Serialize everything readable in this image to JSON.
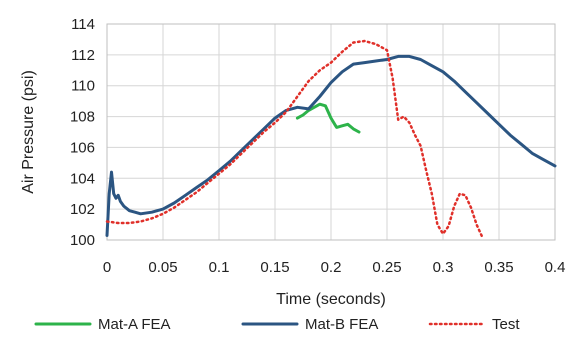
{
  "chart_data": {
    "type": "line",
    "title": "",
    "xlabel": "Time (seconds)",
    "ylabel": "Air Pressure (psi)",
    "xlim": [
      0,
      0.4
    ],
    "ylim": [
      100,
      114
    ],
    "xticks": [
      0,
      0.05,
      0.1,
      0.15,
      0.2,
      0.25,
      0.3,
      0.35,
      0.4
    ],
    "xtick_labels": [
      "0",
      "0.05",
      "0.1",
      "0.15",
      "0.2",
      "0.25",
      "0.3",
      "0.35",
      "0.4"
    ],
    "yticks": [
      100,
      102,
      104,
      106,
      108,
      110,
      112,
      114
    ],
    "ytick_labels": [
      "100",
      "102",
      "104",
      "106",
      "108",
      "110",
      "112",
      "114"
    ],
    "grid": true,
    "legend_position": "bottom",
    "series": [
      {
        "name": "Mat-A FEA",
        "color": "#2db34a",
        "style": "solid",
        "x": [
          0.17,
          0.175,
          0.18,
          0.185,
          0.19,
          0.195,
          0.2,
          0.205,
          0.21,
          0.215,
          0.22,
          0.225
        ],
        "y": [
          107.9,
          108.1,
          108.4,
          108.6,
          108.8,
          108.7,
          107.9,
          107.3,
          107.4,
          107.5,
          107.2,
          107.0
        ]
      },
      {
        "name": "Mat-B FEA",
        "color": "#2b5582",
        "style": "solid",
        "x": [
          0,
          0.002,
          0.004,
          0.006,
          0.008,
          0.01,
          0.012,
          0.015,
          0.02,
          0.025,
          0.03,
          0.04,
          0.05,
          0.06,
          0.07,
          0.08,
          0.09,
          0.1,
          0.11,
          0.12,
          0.13,
          0.14,
          0.15,
          0.16,
          0.17,
          0.18,
          0.19,
          0.2,
          0.21,
          0.22,
          0.23,
          0.24,
          0.25,
          0.26,
          0.27,
          0.28,
          0.29,
          0.3,
          0.31,
          0.32,
          0.33,
          0.34,
          0.35,
          0.36,
          0.37,
          0.38,
          0.39,
          0.4
        ],
        "y": [
          100.3,
          103.0,
          104.4,
          103.0,
          102.7,
          102.9,
          102.5,
          102.2,
          101.9,
          101.8,
          101.7,
          101.8,
          102.0,
          102.4,
          102.9,
          103.4,
          103.9,
          104.5,
          105.1,
          105.8,
          106.5,
          107.2,
          107.9,
          108.4,
          108.6,
          108.5,
          109.3,
          110.2,
          110.9,
          111.4,
          111.5,
          111.6,
          111.7,
          111.9,
          111.9,
          111.7,
          111.3,
          110.9,
          110.3,
          109.6,
          108.9,
          108.2,
          107.5,
          106.8,
          106.2,
          105.6,
          105.2,
          104.8
        ]
      },
      {
        "name": "Test",
        "color": "#e0302a",
        "style": "dotted",
        "x": [
          0,
          0.01,
          0.02,
          0.03,
          0.04,
          0.05,
          0.06,
          0.07,
          0.08,
          0.09,
          0.1,
          0.11,
          0.12,
          0.13,
          0.14,
          0.15,
          0.16,
          0.17,
          0.18,
          0.19,
          0.2,
          0.21,
          0.22,
          0.23,
          0.24,
          0.25,
          0.255,
          0.26,
          0.265,
          0.27,
          0.275,
          0.28,
          0.285,
          0.29,
          0.295,
          0.3,
          0.305,
          0.31,
          0.315,
          0.32,
          0.325,
          0.33,
          0.335
        ],
        "y": [
          101.2,
          101.1,
          101.1,
          101.2,
          101.4,
          101.7,
          102.1,
          102.6,
          103.1,
          103.7,
          104.3,
          104.9,
          105.6,
          106.3,
          107.0,
          107.6,
          108.3,
          109.3,
          110.3,
          111.0,
          111.5,
          112.2,
          112.8,
          112.9,
          112.7,
          112.3,
          110.5,
          107.8,
          108.0,
          107.6,
          106.8,
          106.1,
          104.5,
          103.0,
          101.0,
          100.4,
          100.9,
          102.2,
          103.0,
          102.9,
          102.1,
          101.0,
          100.2
        ]
      }
    ]
  }
}
